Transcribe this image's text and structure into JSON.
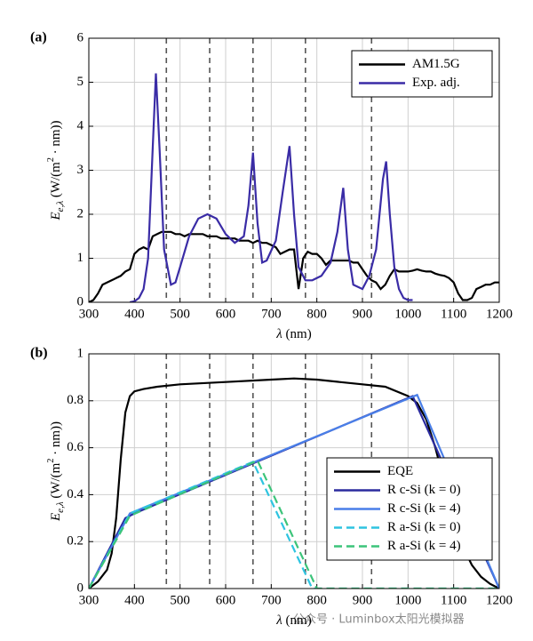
{
  "chart_data": [
    {
      "type": "line",
      "title": "(a)",
      "xlabel": {
        "symbol": "λ",
        "unit": " (nm)"
      },
      "ylabel": {
        "symbol": "E",
        "sub": "e,λ",
        "unit": " (W/(m",
        "sup": "2",
        "rest": " · nm))"
      },
      "xlim": [
        300,
        1200
      ],
      "xticks": [
        300,
        400,
        500,
        600,
        700,
        800,
        900,
        1000,
        1100,
        1200
      ],
      "ylim": [
        0,
        6
      ],
      "yticks": [
        0,
        1,
        2,
        3,
        4,
        5,
        6
      ],
      "grid": true,
      "legend": "upper right",
      "vlines": [
        470,
        565,
        660,
        775,
        920
      ],
      "series": [
        {
          "name": "AM1.5G",
          "color": "#000000",
          "dash": false,
          "x": [
            300,
            310,
            320,
            330,
            340,
            350,
            360,
            370,
            380,
            390,
            400,
            410,
            420,
            430,
            440,
            450,
            460,
            470,
            480,
            490,
            500,
            510,
            520,
            530,
            540,
            550,
            560,
            570,
            580,
            590,
            600,
            610,
            620,
            630,
            640,
            650,
            660,
            670,
            680,
            690,
            700,
            710,
            720,
            730,
            740,
            750,
            760,
            770,
            780,
            790,
            800,
            810,
            820,
            830,
            840,
            850,
            860,
            870,
            880,
            890,
            900,
            910,
            920,
            930,
            940,
            950,
            960,
            970,
            980,
            990,
            1000,
            1010,
            1020,
            1030,
            1040,
            1050,
            1060,
            1070,
            1080,
            1090,
            1100,
            1110,
            1120,
            1130,
            1140,
            1150,
            1160,
            1170,
            1180,
            1190,
            1200
          ],
          "values": [
            0,
            0.05,
            0.2,
            0.4,
            0.45,
            0.5,
            0.55,
            0.6,
            0.7,
            0.75,
            1.1,
            1.2,
            1.25,
            1.2,
            1.5,
            1.55,
            1.6,
            1.6,
            1.6,
            1.55,
            1.55,
            1.5,
            1.55,
            1.55,
            1.55,
            1.55,
            1.5,
            1.5,
            1.5,
            1.45,
            1.45,
            1.45,
            1.45,
            1.4,
            1.4,
            1.4,
            1.35,
            1.4,
            1.35,
            1.35,
            1.3,
            1.25,
            1.1,
            1.15,
            1.2,
            1.2,
            0.3,
            1.0,
            1.15,
            1.1,
            1.1,
            1.0,
            0.85,
            0.95,
            0.95,
            0.95,
            0.95,
            0.95,
            0.9,
            0.9,
            0.75,
            0.6,
            0.5,
            0.45,
            0.3,
            0.4,
            0.6,
            0.75,
            0.7,
            0.7,
            0.7,
            0.72,
            0.75,
            0.72,
            0.7,
            0.7,
            0.65,
            0.62,
            0.6,
            0.55,
            0.45,
            0.2,
            0.05,
            0.05,
            0.1,
            0.3,
            0.35,
            0.4,
            0.4,
            0.45,
            0.45
          ]
        },
        {
          "name": "Exp. adj.",
          "color": "#3a2ca6",
          "dash": false,
          "x": [
            390,
            400,
            410,
            420,
            430,
            440,
            447,
            455,
            465,
            480,
            490,
            500,
            520,
            540,
            560,
            580,
            600,
            620,
            640,
            650,
            660,
            670,
            680,
            690,
            710,
            725,
            740,
            750,
            760,
            775,
            790,
            810,
            830,
            845,
            858,
            868,
            880,
            900,
            915,
            930,
            945,
            952,
            960,
            970,
            980,
            990,
            1000,
            1010
          ],
          "values": [
            0,
            0.02,
            0.1,
            0.3,
            1.0,
            3.5,
            5.2,
            3.5,
            1.2,
            0.4,
            0.45,
            0.8,
            1.5,
            1.9,
            2.0,
            1.9,
            1.55,
            1.35,
            1.5,
            2.2,
            3.4,
            1.8,
            0.9,
            0.95,
            1.4,
            2.5,
            3.55,
            2.0,
            0.8,
            0.5,
            0.5,
            0.6,
            0.9,
            1.6,
            2.6,
            1.2,
            0.4,
            0.3,
            0.6,
            1.2,
            2.8,
            3.2,
            2.0,
            0.8,
            0.3,
            0.1,
            0.05,
            0.05
          ]
        }
      ]
    },
    {
      "type": "line",
      "title": "(b)",
      "xlabel": {
        "symbol": "λ",
        "unit": " (nm)"
      },
      "ylabel": {
        "symbol": "E",
        "sub": "e,λ",
        "unit": " (W/(m",
        "sup": "2",
        "rest": " · nm))"
      },
      "xlim": [
        300,
        1200
      ],
      "xticks": [
        300,
        400,
        500,
        600,
        700,
        800,
        900,
        1000,
        1100,
        1200
      ],
      "ylim": [
        0,
        1
      ],
      "yticks": [
        0,
        0.2,
        0.4,
        0.6,
        0.8,
        1
      ],
      "grid": true,
      "legend": "lower right",
      "vlines": [
        470,
        565,
        660,
        775,
        920
      ],
      "series": [
        {
          "name": "EQE",
          "color": "#000000",
          "dash": false,
          "x": [
            300,
            320,
            340,
            350,
            360,
            370,
            380,
            390,
            400,
            420,
            450,
            500,
            600,
            700,
            750,
            800,
            850,
            900,
            950,
            1000,
            1020,
            1040,
            1060,
            1080,
            1100,
            1120,
            1140,
            1160,
            1180,
            1200
          ],
          "values": [
            0,
            0.03,
            0.08,
            0.15,
            0.3,
            0.55,
            0.75,
            0.82,
            0.84,
            0.85,
            0.86,
            0.87,
            0.88,
            0.89,
            0.895,
            0.89,
            0.88,
            0.87,
            0.86,
            0.82,
            0.79,
            0.72,
            0.6,
            0.45,
            0.3,
            0.18,
            0.1,
            0.05,
            0.02,
            0
          ]
        },
        {
          "name": "R c-Si (k = 0)",
          "color": "#2a2a9e",
          "dash": false,
          "x": [
            300,
            380,
            400,
            1010,
            1200
          ],
          "values": [
            0,
            0.3,
            0.32,
            0.82,
            0
          ]
        },
        {
          "name": "R c-Si (k = 4)",
          "color": "#4a7fe8",
          "dash": false,
          "x": [
            300,
            390,
            1020,
            1200
          ],
          "values": [
            0,
            0.32,
            0.825,
            0
          ]
        },
        {
          "name": "R a-Si (k = 0)",
          "color": "#2ec4e0",
          "dash": true,
          "x": [
            300,
            390,
            660,
            790,
            1200
          ],
          "values": [
            0,
            0.32,
            0.54,
            0,
            0
          ]
        },
        {
          "name": "R a-Si (k = 4)",
          "color": "#3cc47a",
          "dash": true,
          "x": [
            300,
            390,
            670,
            800,
            1200
          ],
          "values": [
            0,
            0.31,
            0.545,
            0,
            0
          ]
        }
      ]
    }
  ],
  "watermark": "公众号 · Luminbox太阳光模拟器"
}
